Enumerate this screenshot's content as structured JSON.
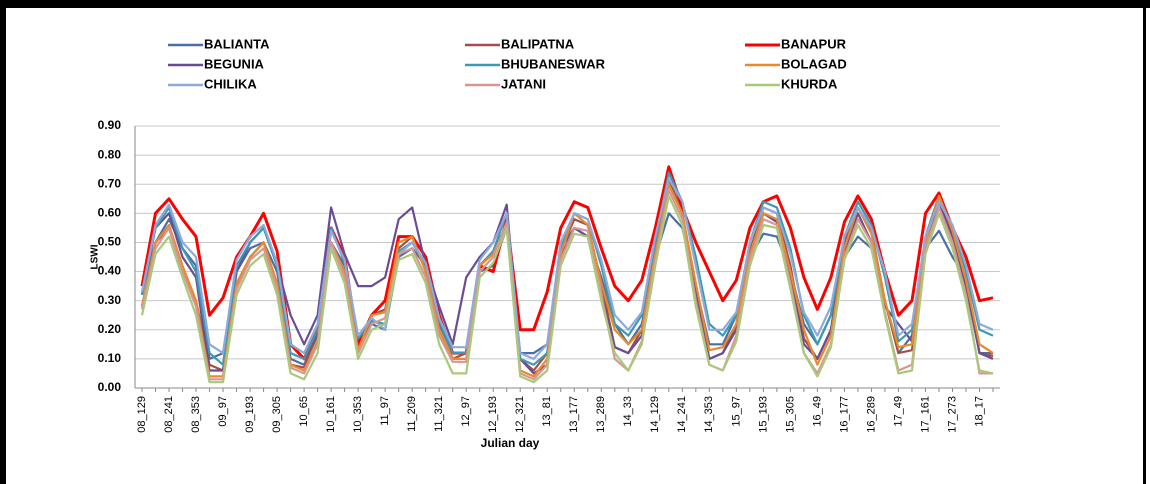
{
  "chart_data": {
    "type": "line",
    "y_label": "LSWI",
    "x_label": "Julian day",
    "categories": [
      "08_129",
      null,
      "08_241",
      null,
      "08_353",
      null,
      "09_97",
      null,
      "09_193",
      null,
      "09_305",
      null,
      "10_65",
      null,
      "10_161",
      null,
      "10_353",
      null,
      "11_97",
      null,
      "11_209",
      null,
      "11_321",
      null,
      "12_97",
      null,
      "12_193",
      null,
      "12_321",
      null,
      "13_81",
      null,
      "13_177",
      null,
      "13_289",
      null,
      "14_33",
      null,
      "14_129",
      null,
      "14_241",
      null,
      "14_353",
      null,
      "15_97",
      null,
      "15_193",
      null,
      "15_305",
      null,
      "16_49",
      null,
      "16_177",
      null,
      "16_289",
      null,
      "17_49",
      null,
      "17_161",
      null,
      "17_273",
      null,
      "18_17",
      null
    ],
    "ylim": [
      0,
      0.9
    ],
    "yticks": [
      {
        "value": 0,
        "label": "0.00"
      },
      {
        "value": 0.1,
        "label": "0.10"
      },
      {
        "value": 0.2,
        "label": "0.20"
      },
      {
        "value": 0.3,
        "label": "0.30"
      },
      {
        "value": 0.4,
        "label": "0.40"
      },
      {
        "value": 0.5,
        "label": "0.50"
      },
      {
        "value": 0.6,
        "label": "0.60"
      },
      {
        "value": 0.7,
        "label": "0.70"
      },
      {
        "value": 0.8,
        "label": "0.80"
      },
      {
        "value": 0.9,
        "label": "0.90"
      }
    ],
    "grid": true,
    "legend": "top",
    "series": [
      {
        "name": "BALIANTA",
        "color": "#4a6fa5",
        "values": [
          0.33,
          0.5,
          0.58,
          0.48,
          0.42,
          0.1,
          0.12,
          0.4,
          0.48,
          0.5,
          0.4,
          0.1,
          0.08,
          0.18,
          0.5,
          0.42,
          0.15,
          0.22,
          0.2,
          0.45,
          0.48,
          0.42,
          0.22,
          0.12,
          0.12,
          0.4,
          0.42,
          0.55,
          0.12,
          0.12,
          0.15,
          0.48,
          0.55,
          0.52,
          0.38,
          0.22,
          0.15,
          0.22,
          0.45,
          0.6,
          0.55,
          0.35,
          0.15,
          0.15,
          0.25,
          0.45,
          0.53,
          0.52,
          0.4,
          0.22,
          0.15,
          0.25,
          0.45,
          0.52,
          0.48,
          0.3,
          0.12,
          0.18,
          0.48,
          0.54,
          0.45,
          0.38,
          0.12,
          0.12
        ]
      },
      {
        "name": "BALIPATNA",
        "color": "#a0504b",
        "values": [
          0.28,
          0.5,
          0.55,
          0.4,
          0.3,
          0.08,
          0.06,
          0.35,
          0.45,
          0.5,
          0.35,
          0.08,
          0.07,
          0.2,
          0.5,
          0.4,
          0.13,
          0.25,
          0.27,
          0.48,
          0.52,
          0.4,
          0.2,
          0.1,
          0.12,
          0.42,
          0.47,
          0.56,
          0.1,
          0.06,
          0.12,
          0.47,
          0.58,
          0.56,
          0.36,
          0.14,
          0.12,
          0.2,
          0.47,
          0.72,
          0.6,
          0.34,
          0.1,
          0.12,
          0.22,
          0.47,
          0.62,
          0.6,
          0.42,
          0.17,
          0.1,
          0.2,
          0.5,
          0.62,
          0.54,
          0.3,
          0.12,
          0.13,
          0.52,
          0.66,
          0.54,
          0.36,
          0.12,
          0.11
        ]
      },
      {
        "name": "BANAPUR",
        "color": "#ff0000",
        "values": [
          0.35,
          0.6,
          0.65,
          0.58,
          0.52,
          0.25,
          0.31,
          0.45,
          0.52,
          0.6,
          0.47,
          0.15,
          0.1,
          0.2,
          0.55,
          0.45,
          0.15,
          0.25,
          0.3,
          0.52,
          0.52,
          0.45,
          0.25,
          0.12,
          0.12,
          0.42,
          0.4,
          0.58,
          0.2,
          0.2,
          0.33,
          0.55,
          0.64,
          0.62,
          0.48,
          0.35,
          0.3,
          0.37,
          0.55,
          0.76,
          0.62,
          0.5,
          0.4,
          0.3,
          0.37,
          0.55,
          0.64,
          0.66,
          0.55,
          0.38,
          0.27,
          0.38,
          0.57,
          0.66,
          0.58,
          0.4,
          0.25,
          0.3,
          0.6,
          0.67,
          0.55,
          0.45,
          0.3,
          0.31
        ]
      },
      {
        "name": "BEGUNIA",
        "color": "#6a4c93",
        "values": [
          0.32,
          0.55,
          0.6,
          0.45,
          0.38,
          0.06,
          0.06,
          0.4,
          0.5,
          0.55,
          0.42,
          0.25,
          0.15,
          0.25,
          0.62,
          0.46,
          0.35,
          0.35,
          0.38,
          0.58,
          0.62,
          0.42,
          0.28,
          0.15,
          0.38,
          0.45,
          0.5,
          0.63,
          0.1,
          0.05,
          0.08,
          0.45,
          0.55,
          0.52,
          0.32,
          0.14,
          0.12,
          0.18,
          0.45,
          0.7,
          0.6,
          0.33,
          0.1,
          0.12,
          0.2,
          0.45,
          0.6,
          0.57,
          0.38,
          0.15,
          0.1,
          0.2,
          0.46,
          0.6,
          0.5,
          0.28,
          0.22,
          0.16,
          0.5,
          0.64,
          0.52,
          0.35,
          0.12,
          0.1
        ]
      },
      {
        "name": "BHUBANESWAR",
        "color": "#3b9ab2",
        "values": [
          0.32,
          0.55,
          0.62,
          0.48,
          0.4,
          0.12,
          0.08,
          0.42,
          0.5,
          0.55,
          0.42,
          0.12,
          0.1,
          0.2,
          0.55,
          0.43,
          0.17,
          0.23,
          0.22,
          0.47,
          0.5,
          0.42,
          0.23,
          0.12,
          0.12,
          0.42,
          0.47,
          0.6,
          0.1,
          0.08,
          0.12,
          0.48,
          0.6,
          0.58,
          0.42,
          0.22,
          0.18,
          0.25,
          0.5,
          0.74,
          0.64,
          0.45,
          0.22,
          0.18,
          0.25,
          0.5,
          0.64,
          0.62,
          0.48,
          0.25,
          0.15,
          0.25,
          0.52,
          0.64,
          0.56,
          0.38,
          0.16,
          0.2,
          0.52,
          0.66,
          0.55,
          0.4,
          0.2,
          0.18
        ]
      },
      {
        "name": "BOLAGAD",
        "color": "#e8892b",
        "values": [
          0.28,
          0.5,
          0.56,
          0.42,
          0.3,
          0.04,
          0.04,
          0.36,
          0.45,
          0.5,
          0.36,
          0.08,
          0.06,
          0.16,
          0.5,
          0.4,
          0.13,
          0.25,
          0.26,
          0.5,
          0.52,
          0.4,
          0.2,
          0.1,
          0.1,
          0.42,
          0.46,
          0.56,
          0.06,
          0.04,
          0.1,
          0.46,
          0.6,
          0.56,
          0.36,
          0.2,
          0.15,
          0.2,
          0.46,
          0.7,
          0.6,
          0.36,
          0.13,
          0.14,
          0.22,
          0.46,
          0.6,
          0.58,
          0.4,
          0.2,
          0.08,
          0.18,
          0.48,
          0.62,
          0.53,
          0.3,
          0.14,
          0.15,
          0.5,
          0.66,
          0.54,
          0.37,
          0.15,
          0.12
        ]
      },
      {
        "name": "CHILIKA",
        "color": "#8eaadb",
        "values": [
          0.33,
          0.56,
          0.63,
          0.5,
          0.45,
          0.15,
          0.12,
          0.44,
          0.52,
          0.56,
          0.43,
          0.15,
          0.12,
          0.22,
          0.54,
          0.44,
          0.18,
          0.24,
          0.2,
          0.46,
          0.5,
          0.43,
          0.24,
          0.14,
          0.14,
          0.44,
          0.5,
          0.6,
          0.12,
          0.1,
          0.15,
          0.5,
          0.6,
          0.58,
          0.44,
          0.25,
          0.2,
          0.26,
          0.52,
          0.72,
          0.64,
          0.42,
          0.2,
          0.2,
          0.26,
          0.5,
          0.62,
          0.6,
          0.46,
          0.26,
          0.18,
          0.28,
          0.52,
          0.62,
          0.55,
          0.4,
          0.18,
          0.22,
          0.52,
          0.64,
          0.56,
          0.42,
          0.22,
          0.2
        ]
      },
      {
        "name": "JATANI",
        "color": "#d99594",
        "values": [
          0.27,
          0.48,
          0.55,
          0.4,
          0.28,
          0.03,
          0.03,
          0.34,
          0.44,
          0.48,
          0.34,
          0.07,
          0.05,
          0.15,
          0.5,
          0.38,
          0.12,
          0.22,
          0.24,
          0.46,
          0.48,
          0.38,
          0.18,
          0.09,
          0.09,
          0.4,
          0.45,
          0.57,
          0.05,
          0.03,
          0.08,
          0.44,
          0.55,
          0.54,
          0.32,
          0.1,
          0.06,
          0.16,
          0.44,
          0.68,
          0.58,
          0.3,
          0.08,
          0.06,
          0.18,
          0.44,
          0.58,
          0.56,
          0.36,
          0.12,
          0.05,
          0.15,
          0.45,
          0.58,
          0.5,
          0.26,
          0.06,
          0.08,
          0.48,
          0.62,
          0.5,
          0.32,
          0.05,
          0.05
        ]
      },
      {
        "name": "KHURDA",
        "color": "#a9c97a",
        "values": [
          0.25,
          0.46,
          0.52,
          0.38,
          0.25,
          0.02,
          0.02,
          0.32,
          0.42,
          0.46,
          0.32,
          0.05,
          0.03,
          0.12,
          0.48,
          0.36,
          0.1,
          0.2,
          0.22,
          0.44,
          0.46,
          0.36,
          0.15,
          0.05,
          0.05,
          0.38,
          0.43,
          0.55,
          0.04,
          0.02,
          0.06,
          0.42,
          0.53,
          0.52,
          0.3,
          0.12,
          0.06,
          0.15,
          0.42,
          0.66,
          0.56,
          0.28,
          0.08,
          0.06,
          0.16,
          0.42,
          0.56,
          0.55,
          0.34,
          0.12,
          0.04,
          0.14,
          0.44,
          0.56,
          0.48,
          0.25,
          0.05,
          0.06,
          0.46,
          0.6,
          0.48,
          0.3,
          0.06,
          0.05
        ]
      }
    ]
  }
}
